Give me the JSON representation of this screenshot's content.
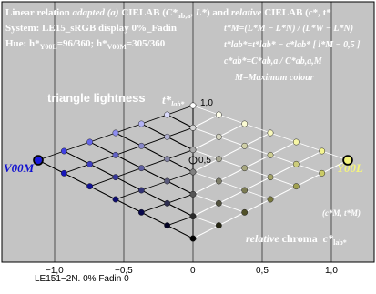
{
  "header": {
    "line1_prefix": "Linear relation ",
    "line1_adapted": "adapted (a)",
    "line1_mid": " CIELAB (",
    "line1_cab": "C*",
    "line1_cab_sub": "ab,a",
    "line1_comma": ", ",
    "line1_L": "L*",
    "line1_close": ") and ",
    "line1_relative": "relative",
    "line1_end": " CIELAB (c*, t*",
    "line2": "System: LE15_sRGB display 0%_Fadin",
    "line3_hue": "Hue: h*",
    "line3_sub1": "Y00L",
    "line3_val1": "=96/360; h*",
    "line3_sub2": "V00M",
    "line3_val2": "=305/360"
  },
  "formulas": {
    "f1": "t*M=(L*M − L*N) / (L*W − L*N)",
    "f2": "t*lab*=t*lab* − c*lab* [ l*M − 0,5 ]",
    "f3": "c*ab*=C*ab,a / C*ab,a,M",
    "f4": "M=Maximum colour"
  },
  "labels": {
    "triangle": "triangle lightness",
    "t_axis": "t*",
    "t_axis_sub": "lab*",
    "v00m": "V00M",
    "y00l": "Y00L",
    "cM_tM": "(c*M, t*M)",
    "rel_chroma_italic": "relative",
    "rel_chroma": " chroma",
    "c_axis": "c*",
    "c_axis_sub": "lab*"
  },
  "axes": {
    "x_ticks": [
      "−1,0",
      "−0,5",
      "0",
      "0,5",
      "1,0"
    ],
    "y_ticks": [
      "1,0",
      "0,5"
    ]
  },
  "footer": "LE151−2N. 0%  Fadin 0",
  "colors": {
    "background": "#c4c4c4",
    "violet": "#1a1ae0",
    "yellow": "#f2f27a",
    "grid_line": "#ffffff"
  }
}
